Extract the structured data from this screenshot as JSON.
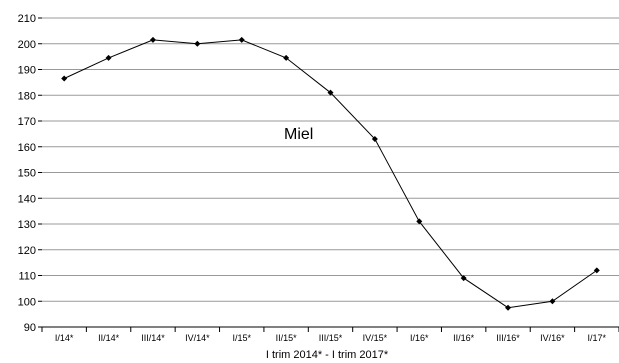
{
  "chart_data": {
    "type": "line",
    "x": [
      "I/14*",
      "II/14*",
      "III/14*",
      "IV/14*",
      "I/15*",
      "II/15*",
      "III/15*",
      "IV/15*",
      "I/16*",
      "II/16*",
      "III/16*",
      "IV/16*",
      "I/17*"
    ],
    "series": [
      {
        "name": "Miel",
        "values": [
          186.5,
          194.5,
          201.5,
          200,
          201.5,
          194.5,
          181,
          163,
          131,
          109,
          97.5,
          100,
          112
        ],
        "color": "#000000"
      }
    ],
    "xlabel": "I trim 2014* - I trim 2017*",
    "ylabel": "",
    "ylim": [
      90,
      210
    ],
    "yticks": [
      90,
      100,
      110,
      120,
      130,
      140,
      150,
      160,
      170,
      180,
      190,
      200,
      210
    ],
    "grid": true,
    "legend": "inline label near series"
  }
}
